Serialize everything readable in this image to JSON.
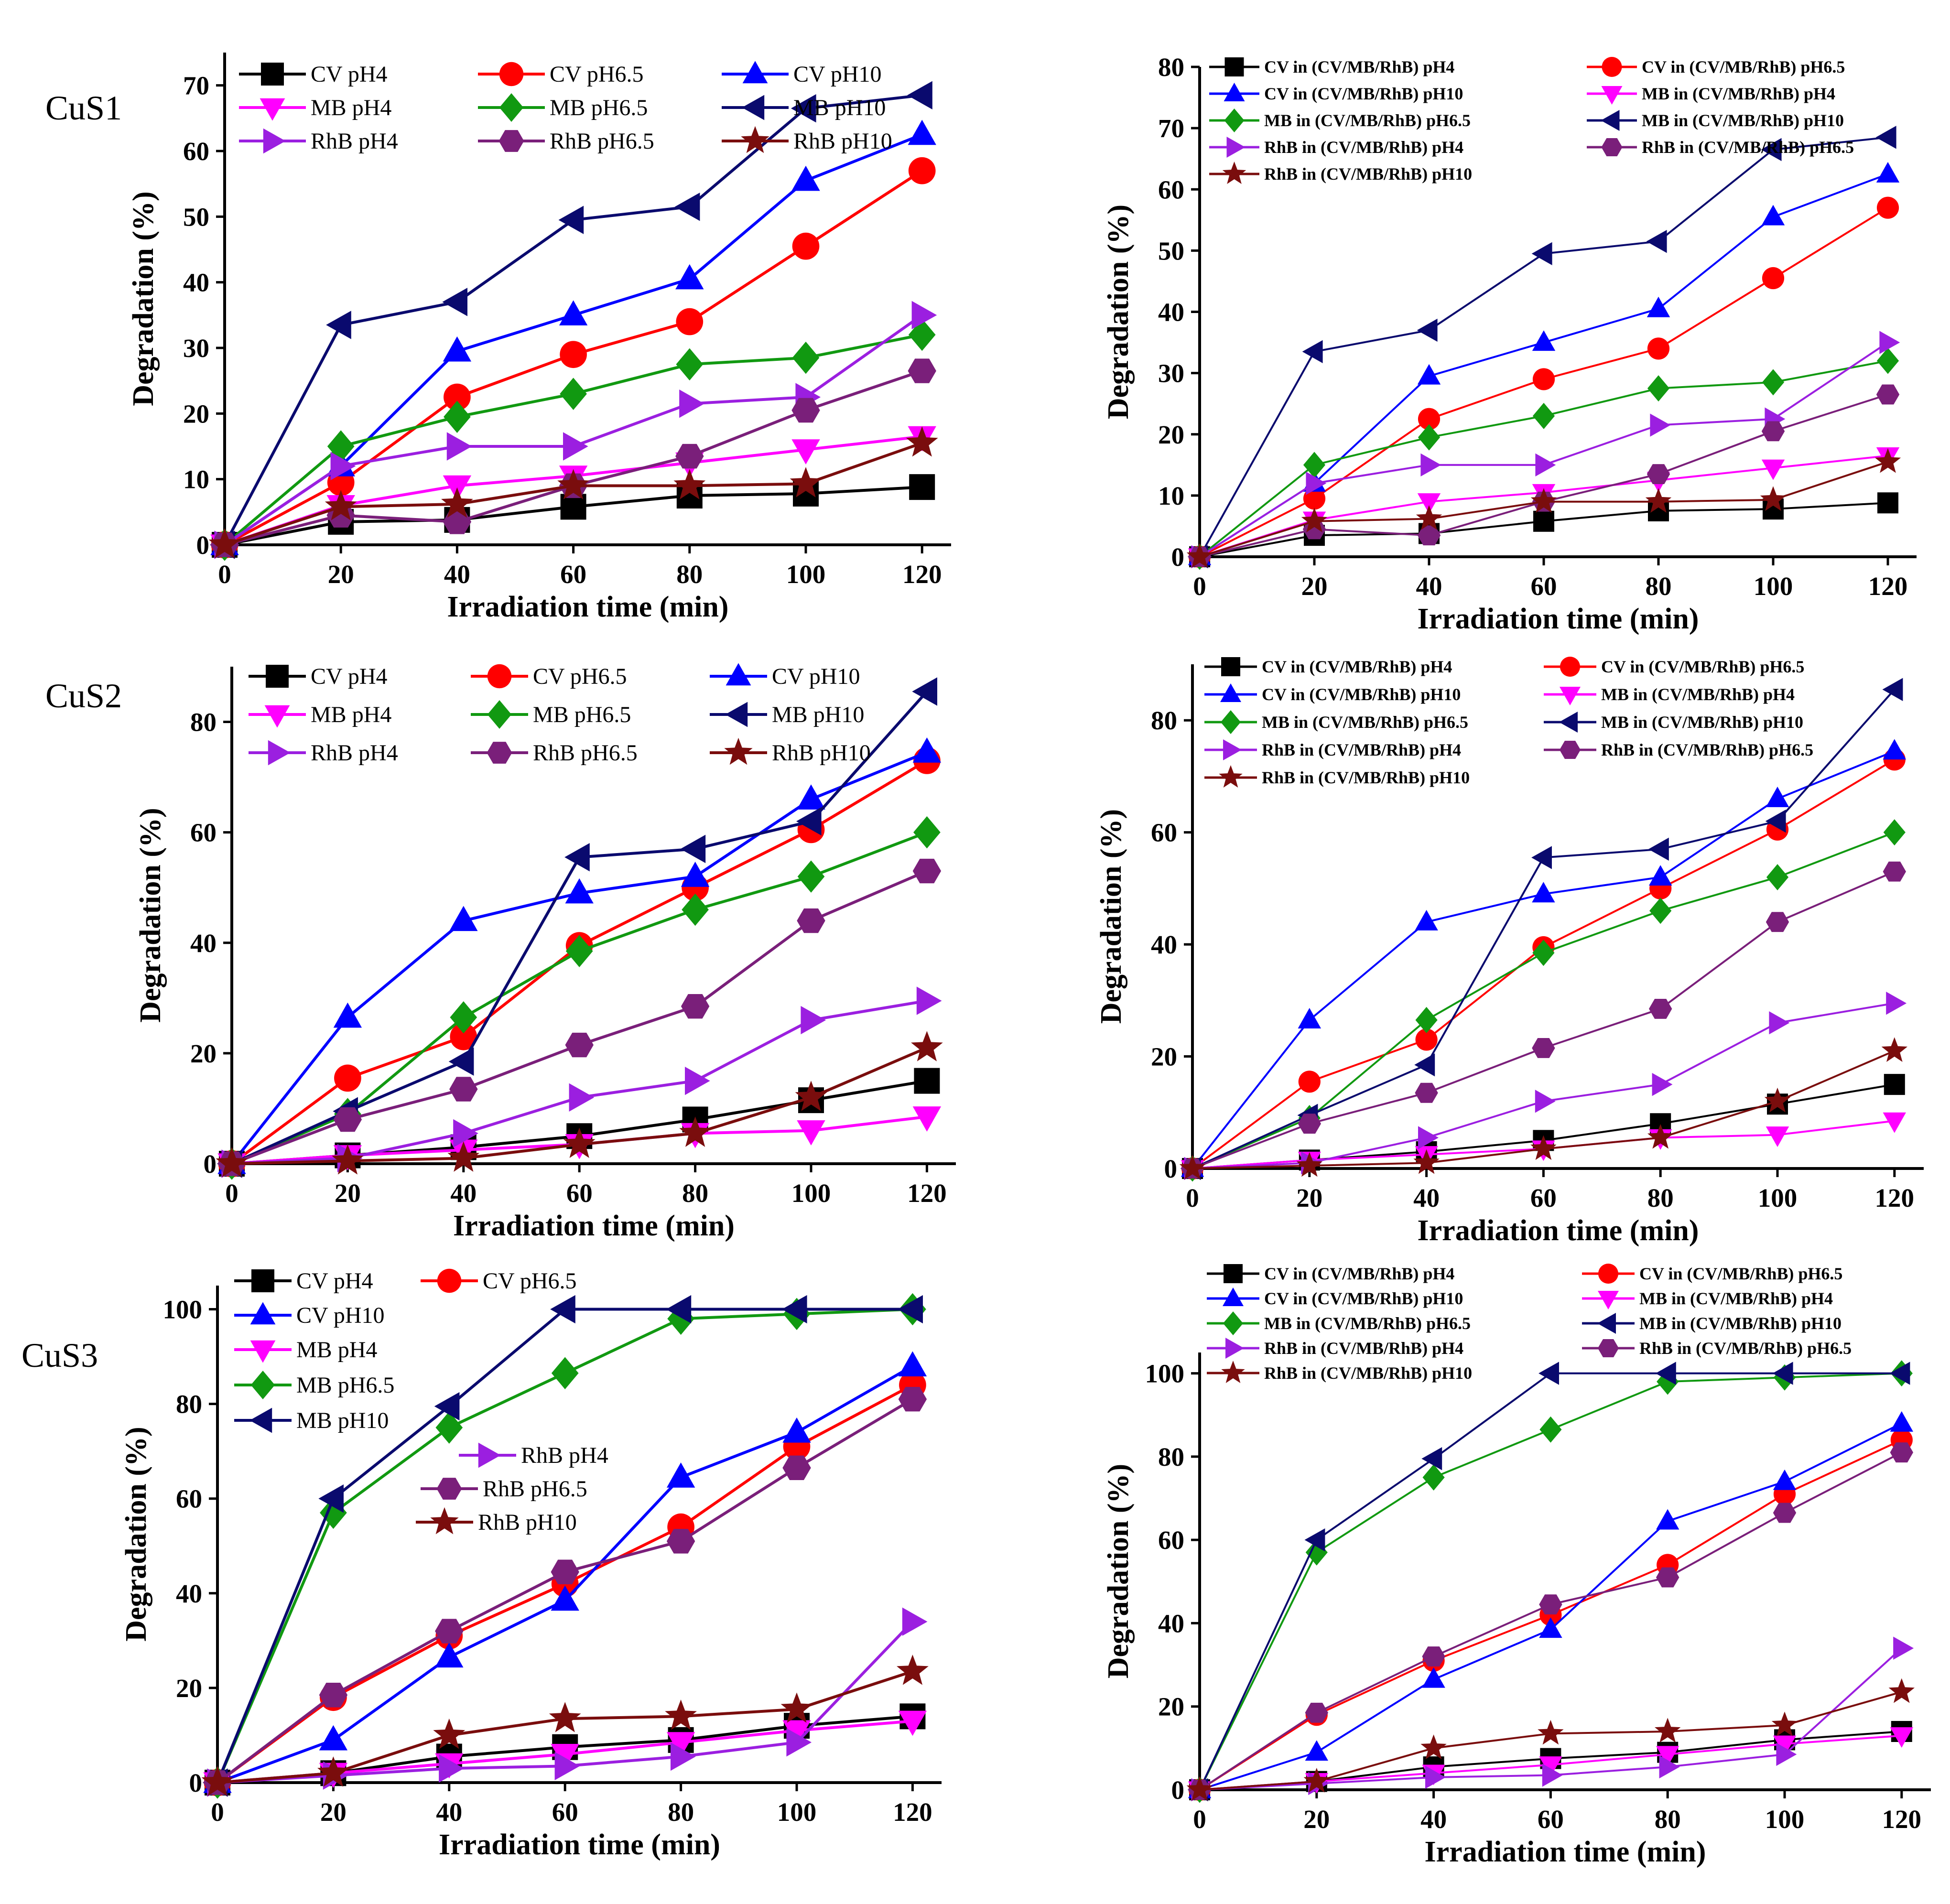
{
  "colors": {
    "CV pH4": "#000000",
    "CV pH6.5": "#ff0000",
    "CV pH10": "#0000ff",
    "MB pH4": "#ff00ff",
    "MB pH6.5": "#119911",
    "MB pH10": "#0a0a6e",
    "RhB pH4": "#9b1fe0",
    "RhB pH6.5": "#7a1f7a",
    "RhB pH10": "#7a0d0d"
  },
  "chart_data": [
    {
      "type": "line",
      "panel_label": "CuS1",
      "xlabel": "Irradiation time (min)",
      "ylabel": "Degradation (%)",
      "xlim": [
        0,
        125
      ],
      "ylim": [
        0,
        75
      ],
      "xticks": [
        0,
        20,
        40,
        60,
        80,
        100,
        120
      ],
      "yticks": [
        0,
        10,
        20,
        30,
        40,
        50,
        60,
        70
      ],
      "legend_position": "top-left",
      "x": [
        0,
        20,
        40,
        60,
        80,
        100,
        120
      ],
      "series": [
        {
          "name": "CV pH4",
          "key": "CV pH4",
          "values": [
            0,
            3.5,
            3.8,
            5.8,
            7.5,
            7.8,
            8.8
          ]
        },
        {
          "name": "CV pH6.5",
          "key": "CV pH6.5",
          "values": [
            0,
            9.5,
            22.5,
            29,
            34,
            45.5,
            57
          ]
        },
        {
          "name": "CV pH10",
          "key": "CV pH10",
          "values": [
            0,
            12,
            29.5,
            35,
            40.5,
            55.5,
            62.5
          ]
        },
        {
          "name": "MB pH4",
          "key": "MB pH4",
          "values": [
            0,
            6,
            9,
            10.5,
            12.5,
            14.5,
            16.5
          ]
        },
        {
          "name": "MB pH6.5",
          "key": "MB pH6.5",
          "values": [
            0,
            15,
            19.5,
            23,
            27.5,
            28.5,
            32
          ]
        },
        {
          "name": "MB pH10",
          "key": "MB pH10",
          "values": [
            0,
            33.5,
            37,
            49.5,
            51.5,
            66.5,
            68.5
          ]
        },
        {
          "name": "RhB pH4",
          "key": "RhB pH4",
          "values": [
            0,
            12,
            15,
            15,
            21.5,
            22.5,
            35
          ]
        },
        {
          "name": "RhB pH6.5",
          "key": "RhB pH6.5",
          "values": [
            0,
            4.5,
            3.5,
            9,
            13.5,
            20.5,
            26.5
          ]
        },
        {
          "name": "RhB pH10",
          "key": "RhB pH10",
          "values": [
            0,
            5.8,
            6.2,
            9,
            9,
            9.3,
            15.5
          ]
        }
      ]
    },
    {
      "type": "line",
      "panel_label": "",
      "xlabel": "Irradiation time (min)",
      "ylabel": "Degradation (%)",
      "xlim": [
        0,
        125
      ],
      "ylim": [
        0,
        80
      ],
      "xticks": [
        0,
        20,
        40,
        60,
        80,
        100,
        120
      ],
      "yticks": [
        0,
        10,
        20,
        30,
        40,
        50,
        60,
        70,
        80
      ],
      "legend_position": "top",
      "x": [
        0,
        20,
        40,
        60,
        80,
        100,
        120
      ],
      "series": [
        {
          "name": "CV in (CV/MB/RhB) pH4",
          "key": "CV pH4",
          "values": [
            0,
            3.5,
            3.8,
            5.8,
            7.5,
            7.8,
            8.8
          ]
        },
        {
          "name": "CV in (CV/MB/RhB) pH6.5",
          "key": "CV pH6.5",
          "values": [
            0,
            9.5,
            22.5,
            29,
            34,
            45.5,
            57
          ]
        },
        {
          "name": "CV in (CV/MB/RhB) pH10",
          "key": "CV pH10",
          "values": [
            0,
            12,
            29.5,
            35,
            40.5,
            55.5,
            62.5
          ]
        },
        {
          "name": "MB in (CV/MB/RhB) pH4",
          "key": "MB pH4",
          "values": [
            0,
            6,
            9,
            10.5,
            12.5,
            14.5,
            16.5
          ]
        },
        {
          "name": "MB in (CV/MB/RhB) pH6.5",
          "key": "MB pH6.5",
          "values": [
            0,
            15,
            19.5,
            23,
            27.5,
            28.5,
            32
          ]
        },
        {
          "name": "MB in (CV/MB/RhB) pH10",
          "key": "MB pH10",
          "values": [
            0,
            33.5,
            37,
            49.5,
            51.5,
            66.5,
            68.5
          ]
        },
        {
          "name": "RhB in (CV/MB/RhB) pH4",
          "key": "RhB pH4",
          "values": [
            0,
            12,
            15,
            15,
            21.5,
            22.5,
            35
          ]
        },
        {
          "name": "RhB in (CV/MB/RhB) pH6.5",
          "key": "RhB pH6.5",
          "values": [
            0,
            4.5,
            3.5,
            9,
            13.5,
            20.5,
            26.5
          ]
        },
        {
          "name": "RhB in (CV/MB/RhB) pH10",
          "key": "RhB pH10",
          "values": [
            0,
            5.8,
            6.2,
            9,
            9,
            9.3,
            15.5
          ]
        }
      ]
    },
    {
      "type": "line",
      "panel_label": "CuS2",
      "xlabel": "Irradiation time (min)",
      "ylabel": "Degradation (%)",
      "xlim": [
        0,
        125
      ],
      "ylim": [
        0,
        90
      ],
      "xticks": [
        0,
        20,
        40,
        60,
        80,
        100,
        120
      ],
      "yticks": [
        0,
        20,
        40,
        60,
        80
      ],
      "legend_position": "top-left",
      "x": [
        0,
        20,
        40,
        60,
        80,
        100,
        120
      ],
      "series": [
        {
          "name": "CV pH4",
          "key": "CV pH4",
          "values": [
            0,
            1.5,
            3,
            5,
            8,
            11.5,
            15
          ]
        },
        {
          "name": "CV pH6.5",
          "key": "CV pH6.5",
          "values": [
            0,
            15.5,
            23,
            39.5,
            50,
            60.5,
            73
          ]
        },
        {
          "name": "CV pH10",
          "key": "CV pH10",
          "values": [
            0,
            26.5,
            44,
            49,
            52,
            66,
            74.5
          ]
        },
        {
          "name": "MB pH4",
          "key": "MB pH4",
          "values": [
            0,
            1.5,
            2.5,
            3.5,
            5.5,
            6,
            8.5
          ]
        },
        {
          "name": "MB pH6.5",
          "key": "MB pH6.5",
          "values": [
            0,
            9,
            26.5,
            38.5,
            46,
            52,
            60
          ]
        },
        {
          "name": "MB pH10",
          "key": "MB pH10",
          "values": [
            0,
            9.5,
            18.5,
            55.5,
            57,
            62,
            85.5
          ]
        },
        {
          "name": "RhB pH4",
          "key": "RhB pH4",
          "values": [
            0,
            1,
            5.5,
            12,
            15,
            26,
            29.5
          ]
        },
        {
          "name": "RhB pH6.5",
          "key": "RhB pH6.5",
          "values": [
            0,
            8,
            13.5,
            21.5,
            28.5,
            44,
            53
          ]
        },
        {
          "name": "RhB pH10",
          "key": "RhB pH10",
          "values": [
            0,
            0.5,
            1,
            3.5,
            5.5,
            12,
            21
          ]
        }
      ]
    },
    {
      "type": "line",
      "panel_label": "",
      "xlabel": "Irradiation time (min)",
      "ylabel": "Degradation (%)",
      "xlim": [
        0,
        125
      ],
      "ylim": [
        0,
        90
      ],
      "xticks": [
        0,
        20,
        40,
        60,
        80,
        100,
        120
      ],
      "yticks": [
        0,
        20,
        40,
        60,
        80
      ],
      "legend_position": "top",
      "x": [
        0,
        20,
        40,
        60,
        80,
        100,
        120
      ],
      "series": [
        {
          "name": "CV in (CV/MB/RhB) pH4",
          "key": "CV pH4",
          "values": [
            0,
            1.5,
            3,
            5,
            8,
            11.5,
            15
          ]
        },
        {
          "name": "CV in (CV/MB/RhB) pH6.5",
          "key": "CV pH6.5",
          "values": [
            0,
            15.5,
            23,
            39.5,
            50,
            60.5,
            73
          ]
        },
        {
          "name": "CV in (CV/MB/RhB) pH10",
          "key": "CV pH10",
          "values": [
            0,
            26.5,
            44,
            49,
            52,
            66,
            74.5
          ]
        },
        {
          "name": "MB in (CV/MB/RhB) pH4",
          "key": "MB pH4",
          "values": [
            0,
            1.5,
            2.5,
            3.5,
            5.5,
            6,
            8.5
          ]
        },
        {
          "name": "MB in (CV/MB/RhB) pH6.5",
          "key": "MB pH6.5",
          "values": [
            0,
            9,
            26.5,
            38.5,
            46,
            52,
            60
          ]
        },
        {
          "name": "MB in (CV/MB/RhB) pH10",
          "key": "MB pH10",
          "values": [
            0,
            9.5,
            18.5,
            55.5,
            57,
            62,
            85.5
          ]
        },
        {
          "name": "RhB in (CV/MB/RhB) pH4",
          "key": "RhB pH4",
          "values": [
            0,
            1,
            5.5,
            12,
            15,
            26,
            29.5
          ]
        },
        {
          "name": "RhB in (CV/MB/RhB) pH6.5",
          "key": "RhB pH6.5",
          "values": [
            0,
            8,
            13.5,
            21.5,
            28.5,
            44,
            53
          ]
        },
        {
          "name": "RhB in (CV/MB/RhB) pH10",
          "key": "RhB pH10",
          "values": [
            0,
            0.5,
            1,
            3.5,
            5.5,
            12,
            21
          ]
        }
      ]
    },
    {
      "type": "line",
      "panel_label": "CuS3",
      "xlabel": "Irradiation time (min)",
      "ylabel": "Degradation (%)",
      "xlim": [
        0,
        125
      ],
      "ylim": [
        0,
        105
      ],
      "xticks": [
        0,
        20,
        40,
        60,
        80,
        100,
        120
      ],
      "yticks": [
        0,
        20,
        40,
        60,
        80,
        100
      ],
      "legend_position": "top-left",
      "x": [
        0,
        20,
        40,
        60,
        80,
        100,
        120
      ],
      "series": [
        {
          "name": "CV pH4",
          "key": "CV pH4",
          "values": [
            0,
            2,
            5.5,
            7.5,
            9,
            12,
            14
          ]
        },
        {
          "name": "CV pH6.5",
          "key": "CV pH6.5",
          "values": [
            0,
            18,
            31,
            42,
            54,
            71,
            84
          ]
        },
        {
          "name": "CV pH10",
          "key": "CV pH10",
          "values": [
            0,
            9,
            26.5,
            38.5,
            64.5,
            74,
            88
          ]
        },
        {
          "name": "MB pH4",
          "key": "MB pH4",
          "values": [
            0,
            2,
            4,
            6,
            8.5,
            11,
            13
          ]
        },
        {
          "name": "MB pH6.5",
          "key": "MB pH6.5",
          "values": [
            0,
            57,
            75,
            86.5,
            98,
            99,
            100
          ]
        },
        {
          "name": "MB pH10",
          "key": "MB pH10",
          "values": [
            0,
            60,
            79.5,
            100,
            100,
            100,
            100
          ]
        },
        {
          "name": "RhB pH4",
          "key": "RhB pH4",
          "values": [
            0,
            1.5,
            3,
            3.5,
            5.5,
            8.5,
            34
          ]
        },
        {
          "name": "RhB pH6.5",
          "key": "RhB pH6.5",
          "values": [
            0,
            18.5,
            32,
            44.5,
            51,
            66.5,
            81
          ]
        },
        {
          "name": "RhB pH10",
          "key": "RhB pH10",
          "values": [
            0,
            2,
            10,
            13.5,
            14,
            15.5,
            23.5
          ]
        }
      ]
    },
    {
      "type": "line",
      "panel_label": "",
      "xlabel": "Irradiation time (min)",
      "ylabel": "Degradation (%)",
      "xlim": [
        0,
        125
      ],
      "ylim": [
        0,
        105
      ],
      "xticks": [
        0,
        20,
        40,
        60,
        80,
        100,
        120
      ],
      "yticks": [
        0,
        20,
        40,
        60,
        80,
        100
      ],
      "legend_position": "top",
      "x": [
        0,
        20,
        40,
        60,
        80,
        100,
        120
      ],
      "series": [
        {
          "name": "CV in (CV/MB/RhB) pH4",
          "key": "CV pH4",
          "values": [
            0,
            2,
            5.5,
            7.5,
            9,
            12,
            14
          ]
        },
        {
          "name": "CV in (CV/MB/RhB) pH6.5",
          "key": "CV pH6.5",
          "values": [
            0,
            18,
            31,
            42,
            54,
            71,
            84
          ]
        },
        {
          "name": "CV in (CV/MB/RhB) pH10",
          "key": "CV pH10",
          "values": [
            0,
            9,
            26.5,
            38.5,
            64.5,
            74,
            88
          ]
        },
        {
          "name": "MB in (CV/MB/RhB) pH4",
          "key": "MB pH4",
          "values": [
            0,
            2,
            4,
            6,
            8.5,
            11,
            13
          ]
        },
        {
          "name": "MB in (CV/MB/RhB) pH6.5",
          "key": "MB pH6.5",
          "values": [
            0,
            57,
            75,
            86.5,
            98,
            99,
            100
          ]
        },
        {
          "name": "MB in (CV/MB/RhB) pH10",
          "key": "MB pH10",
          "values": [
            0,
            60,
            79.5,
            100,
            100,
            100,
            100
          ]
        },
        {
          "name": "RhB in (CV/MB/RhB) pH4",
          "key": "RhB pH4",
          "values": [
            0,
            1.5,
            3,
            3.5,
            5.5,
            8.5,
            34
          ]
        },
        {
          "name": "RhB in (CV/MB/RhB) pH6.5",
          "key": "RhB pH6.5",
          "values": [
            0,
            18.5,
            32,
            44.5,
            51,
            66.5,
            81
          ]
        },
        {
          "name": "RhB in (CV/MB/RhB) pH10",
          "key": "RhB pH10",
          "values": [
            0,
            2,
            10,
            13.5,
            14,
            15.5,
            23.5
          ]
        }
      ]
    }
  ]
}
